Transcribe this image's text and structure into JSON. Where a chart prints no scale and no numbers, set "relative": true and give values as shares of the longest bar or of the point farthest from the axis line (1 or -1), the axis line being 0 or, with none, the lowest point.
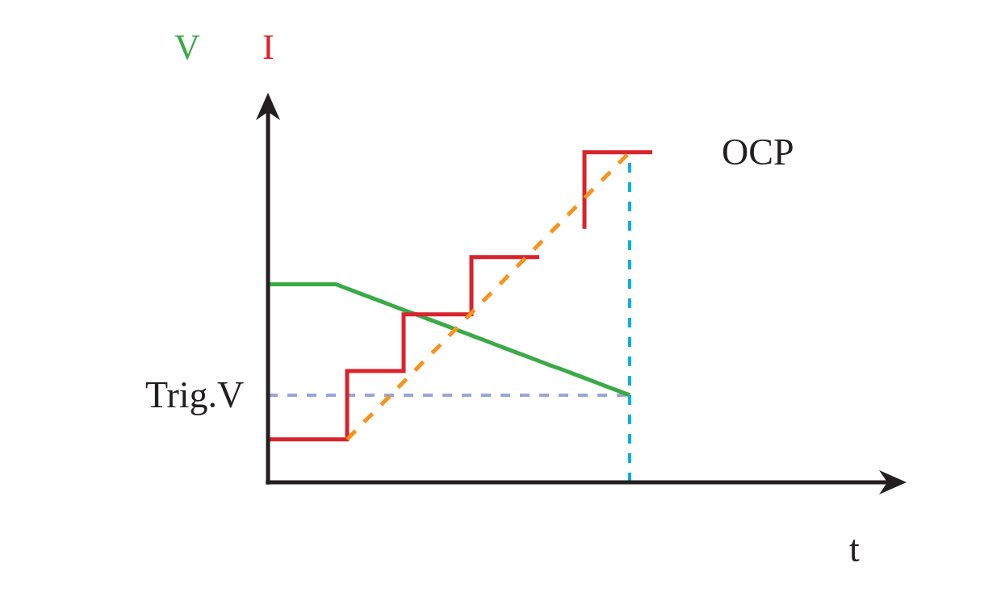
{
  "chart_data": {
    "type": "line",
    "relative": true,
    "xlabel": "t",
    "categories": [
      null,
      null,
      null,
      null,
      null,
      null,
      null,
      null,
      null,
      null,
      null,
      null,
      null,
      null,
      null,
      null,
      null,
      null,
      null,
      null,
      null,
      null,
      null,
      null,
      null,
      null,
      null,
      null,
      null,
      null,
      null,
      null,
      null,
      null,
      null,
      null,
      null,
      null,
      null,
      null,
      null,
      null,
      null,
      null,
      null,
      null,
      null,
      null,
      null,
      null,
      null,
      null,
      null,
      null,
      null,
      null,
      null
    ],
    "series": [
      {
        "name": "V",
        "color": "#3aaa47",
        "values": [
          0.6,
          0.6,
          0.6,
          0.6,
          0.6,
          0.6,
          0.6,
          0.587,
          0.574,
          0.561,
          0.548,
          0.535,
          0.522,
          0.51,
          0.497,
          0.484,
          0.471,
          0.458,
          0.445,
          0.432,
          0.419,
          0.406,
          0.393,
          0.38,
          0.367,
          0.354,
          0.342,
          0.329,
          0.316,
          0.303,
          0.29,
          0.277,
          0.264,
          null,
          null,
          null,
          null,
          null,
          null,
          null,
          null,
          null,
          null,
          null,
          null,
          null,
          null,
          null,
          null,
          null,
          null,
          null,
          null,
          null,
          null,
          null,
          null
        ]
      },
      {
        "name": "I",
        "color": "#d9232d",
        "type": "step",
        "values": [
          0.13,
          0.13,
          0.13,
          0.13,
          0.13,
          0.13,
          0.13,
          0.13,
          0.337,
          0.337,
          0.337,
          0.337,
          0.337,
          0.509,
          0.509,
          0.509,
          0.509,
          0.509,
          0.509,
          0.682,
          0.682,
          0.682,
          0.682,
          0.682,
          0.682,
          null,
          null,
          null,
          0.768,
          1.0,
          1.0,
          1.0,
          1.0,
          1.0,
          1.0,
          null,
          null,
          null,
          null,
          null,
          null,
          null,
          null,
          null,
          null,
          null,
          null,
          null,
          null,
          null,
          null,
          null,
          null,
          null,
          null,
          null,
          null
        ]
      },
      {
        "color": "#f7941d",
        "line_style": "dashed",
        "values": [
          null,
          null,
          null,
          null,
          null,
          null,
          null,
          0.13,
          0.165,
          0.2,
          0.234,
          0.269,
          0.304,
          0.339,
          0.374,
          0.408,
          0.443,
          0.478,
          0.513,
          0.548,
          0.582,
          0.617,
          0.652,
          0.687,
          0.722,
          0.756,
          0.791,
          0.826,
          0.861,
          0.896,
          0.93,
          0.965,
          1.0,
          null,
          null,
          null,
          null,
          null,
          null,
          null,
          null,
          null,
          null,
          null,
          null,
          null,
          null,
          null,
          null,
          null,
          null,
          null,
          null,
          null,
          null,
          null,
          null
        ]
      }
    ],
    "ref_lines": [
      {
        "axis": "y",
        "value": 0.264,
        "label": "Trig.V",
        "color": "#98a6d6",
        "line_style": "dashed"
      }
    ],
    "annotations": [
      "OCP"
    ],
    "legend": false,
    "grid": false,
    "marker": "none"
  }
}
